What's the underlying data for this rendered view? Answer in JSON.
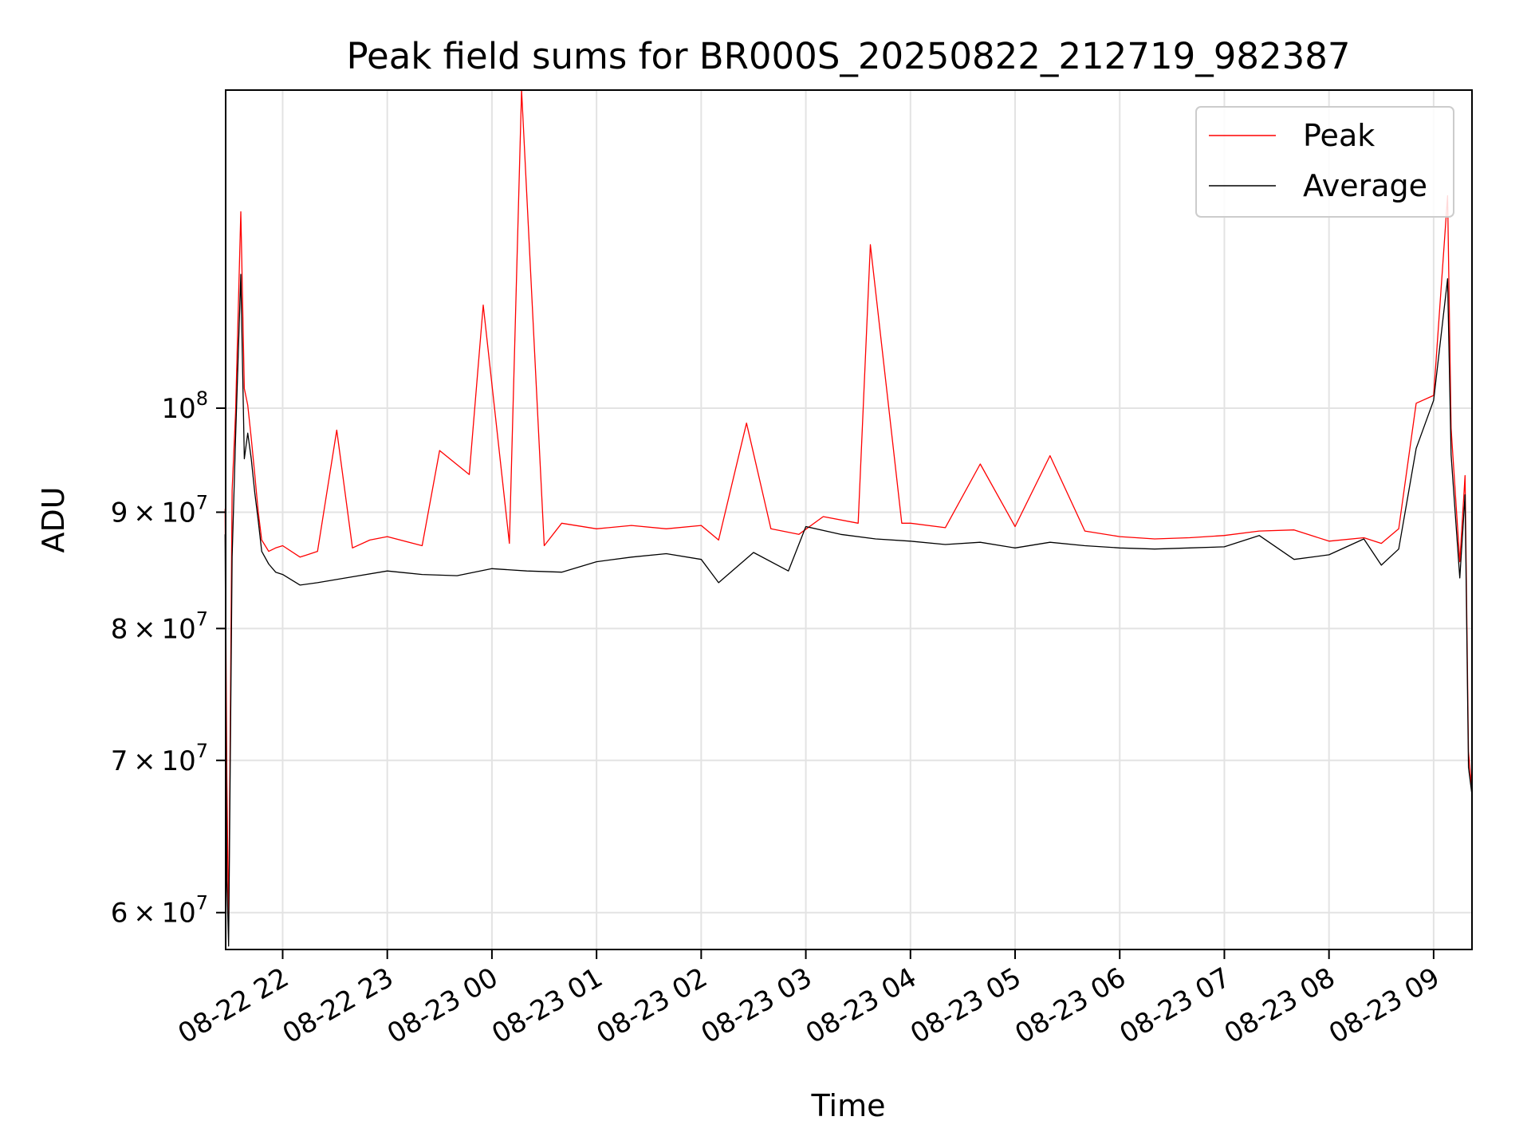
{
  "chart_data": {
    "type": "line",
    "title": "Peak field sums for BR000S_20250822_212719_982387",
    "xlabel": "Time",
    "ylabel": "ADU",
    "yscale": "log",
    "xlim": [
      "2025-08-22 21:27:19",
      "2025-08-23 09:22:00"
    ],
    "ylim": [
      57800000,
      138000000
    ],
    "x_tick_labels": [
      "08-22 22",
      "08-22 23",
      "08-23 00",
      "08-23 01",
      "08-23 02",
      "08-23 03",
      "08-23 04",
      "08-23 05",
      "08-23 06",
      "08-23 07",
      "08-23 08",
      "08-23 09"
    ],
    "x_tick_times": [
      "2025-08-22 22:00",
      "2025-08-22 23:00",
      "2025-08-23 00:00",
      "2025-08-23 01:00",
      "2025-08-23 02:00",
      "2025-08-23 03:00",
      "2025-08-23 04:00",
      "2025-08-23 05:00",
      "2025-08-23 06:00",
      "2025-08-23 07:00",
      "2025-08-23 08:00",
      "2025-08-23 09:00"
    ],
    "y_ticks": [
      {
        "value": 60000000,
        "mantissa": "6",
        "exp": "7"
      },
      {
        "value": 70000000,
        "mantissa": "7",
        "exp": "7"
      },
      {
        "value": 80000000,
        "mantissa": "8",
        "exp": "7"
      },
      {
        "value": 90000000,
        "mantissa": "9",
        "exp": "7"
      },
      {
        "value": 100000000,
        "mantissa": "",
        "exp": "8"
      }
    ],
    "grid": true,
    "legend_position": "top-right",
    "series": [
      {
        "name": "Peak",
        "color": "#ff0000",
        "x": [
          "2025-08-22 21:27",
          "2025-08-22 21:28",
          "2025-08-22 21:29",
          "2025-08-22 21:31",
          "2025-08-22 21:33",
          "2025-08-22 21:36",
          "2025-08-22 21:38",
          "2025-08-22 21:40",
          "2025-08-22 21:42",
          "2025-08-22 21:44",
          "2025-08-22 21:46",
          "2025-08-22 21:48",
          "2025-08-22 21:52",
          "2025-08-22 21:56",
          "2025-08-22 22:00",
          "2025-08-22 22:10",
          "2025-08-22 22:20",
          "2025-08-22 22:31",
          "2025-08-22 22:40",
          "2025-08-22 22:50",
          "2025-08-22 23:00",
          "2025-08-22 23:20",
          "2025-08-22 23:30",
          "2025-08-22 23:47",
          "2025-08-22 23:55",
          "2025-08-23 00:10",
          "2025-08-23 00:17",
          "2025-08-23 00:30",
          "2025-08-23 00:40",
          "2025-08-23 01:00",
          "2025-08-23 01:20",
          "2025-08-23 01:40",
          "2025-08-23 02:00",
          "2025-08-23 02:10",
          "2025-08-23 02:26",
          "2025-08-23 02:40",
          "2025-08-23 02:56",
          "2025-08-23 03:10",
          "2025-08-23 03:30",
          "2025-08-23 03:37",
          "2025-08-23 03:55",
          "2025-08-23 04:00",
          "2025-08-23 04:20",
          "2025-08-23 04:40",
          "2025-08-23 05:00",
          "2025-08-23 05:20",
          "2025-08-23 05:40",
          "2025-08-23 06:00",
          "2025-08-23 06:20",
          "2025-08-23 06:40",
          "2025-08-23 07:00",
          "2025-08-23 07:20",
          "2025-08-23 07:40",
          "2025-08-23 08:00",
          "2025-08-23 08:20",
          "2025-08-23 08:30",
          "2025-08-23 08:40",
          "2025-08-23 08:50",
          "2025-08-23 09:00",
          "2025-08-23 09:08",
          "2025-08-23 09:10",
          "2025-08-23 09:15",
          "2025-08-23 09:18",
          "2025-08-23 09:20",
          "2025-08-23 09:22"
        ],
        "values": [
          90300000,
          68800000,
          59000000,
          92000000,
          99500000,
          122000000,
          102000000,
          100300000,
          97000000,
          93500000,
          90000000,
          87500000,
          86500000,
          86800000,
          87000000,
          86000000,
          86500000,
          97800000,
          86800000,
          87500000,
          87800000,
          87000000,
          95800000,
          93500000,
          111000000,
          87200000,
          138000000,
          87000000,
          89000000,
          88500000,
          88800000,
          88500000,
          88800000,
          87500000,
          98500000,
          88500000,
          88000000,
          89600000,
          89000000,
          118000000,
          89000000,
          89000000,
          88600000,
          94500000,
          88700000,
          95300000,
          88300000,
          87800000,
          87600000,
          87700000,
          87900000,
          88300000,
          88400000,
          87400000,
          87700000,
          87200000,
          88500000,
          100500000,
          101300000,
          124000000,
          98000000,
          85600000,
          93400000,
          70600000,
          67800000
        ]
      },
      {
        "name": "Average",
        "color": "#000000",
        "x": [
          "2025-08-22 21:27",
          "2025-08-22 21:28",
          "2025-08-22 21:29",
          "2025-08-22 21:31",
          "2025-08-22 21:33",
          "2025-08-22 21:36",
          "2025-08-22 21:38",
          "2025-08-22 21:40",
          "2025-08-22 21:42",
          "2025-08-22 21:44",
          "2025-08-22 21:46",
          "2025-08-22 21:48",
          "2025-08-22 21:52",
          "2025-08-22 21:56",
          "2025-08-22 22:00",
          "2025-08-22 22:10",
          "2025-08-22 22:20",
          "2025-08-22 22:40",
          "2025-08-22 23:00",
          "2025-08-22 23:20",
          "2025-08-22 23:40",
          "2025-08-23 00:00",
          "2025-08-23 00:20",
          "2025-08-23 00:40",
          "2025-08-23 01:00",
          "2025-08-23 01:20",
          "2025-08-23 01:40",
          "2025-08-23 02:00",
          "2025-08-23 02:10",
          "2025-08-23 02:30",
          "2025-08-23 02:50",
          "2025-08-23 03:00",
          "2025-08-23 03:20",
          "2025-08-23 03:40",
          "2025-08-23 04:00",
          "2025-08-23 04:20",
          "2025-08-23 04:40",
          "2025-08-23 05:00",
          "2025-08-23 05:20",
          "2025-08-23 05:40",
          "2025-08-23 06:00",
          "2025-08-23 06:20",
          "2025-08-23 06:40",
          "2025-08-23 07:00",
          "2025-08-23 07:20",
          "2025-08-23 07:40",
          "2025-08-23 08:00",
          "2025-08-23 08:20",
          "2025-08-23 08:30",
          "2025-08-23 08:40",
          "2025-08-23 08:50",
          "2025-08-23 09:00",
          "2025-08-23 09:08",
          "2025-08-23 09:10",
          "2025-08-23 09:15",
          "2025-08-23 09:18",
          "2025-08-23 09:20",
          "2025-08-23 09:22"
        ],
        "values": [
          88000000,
          62000000,
          58000000,
          86000000,
          97000000,
          114500000,
          95000000,
          97500000,
          95000000,
          91800000,
          89200000,
          86500000,
          85400000,
          84700000,
          84500000,
          83600000,
          83800000,
          84300000,
          84800000,
          84500000,
          84400000,
          85000000,
          84800000,
          84700000,
          85600000,
          86000000,
          86300000,
          85800000,
          83800000,
          86400000,
          84800000,
          88700000,
          88000000,
          87600000,
          87400000,
          87100000,
          87300000,
          86800000,
          87300000,
          87000000,
          86800000,
          86700000,
          86800000,
          86900000,
          87900000,
          85800000,
          86200000,
          87600000,
          85300000,
          86700000,
          96000000,
          100800000,
          114000000,
          95400000,
          84200000,
          91600000,
          69500000,
          67600000
        ]
      }
    ]
  }
}
